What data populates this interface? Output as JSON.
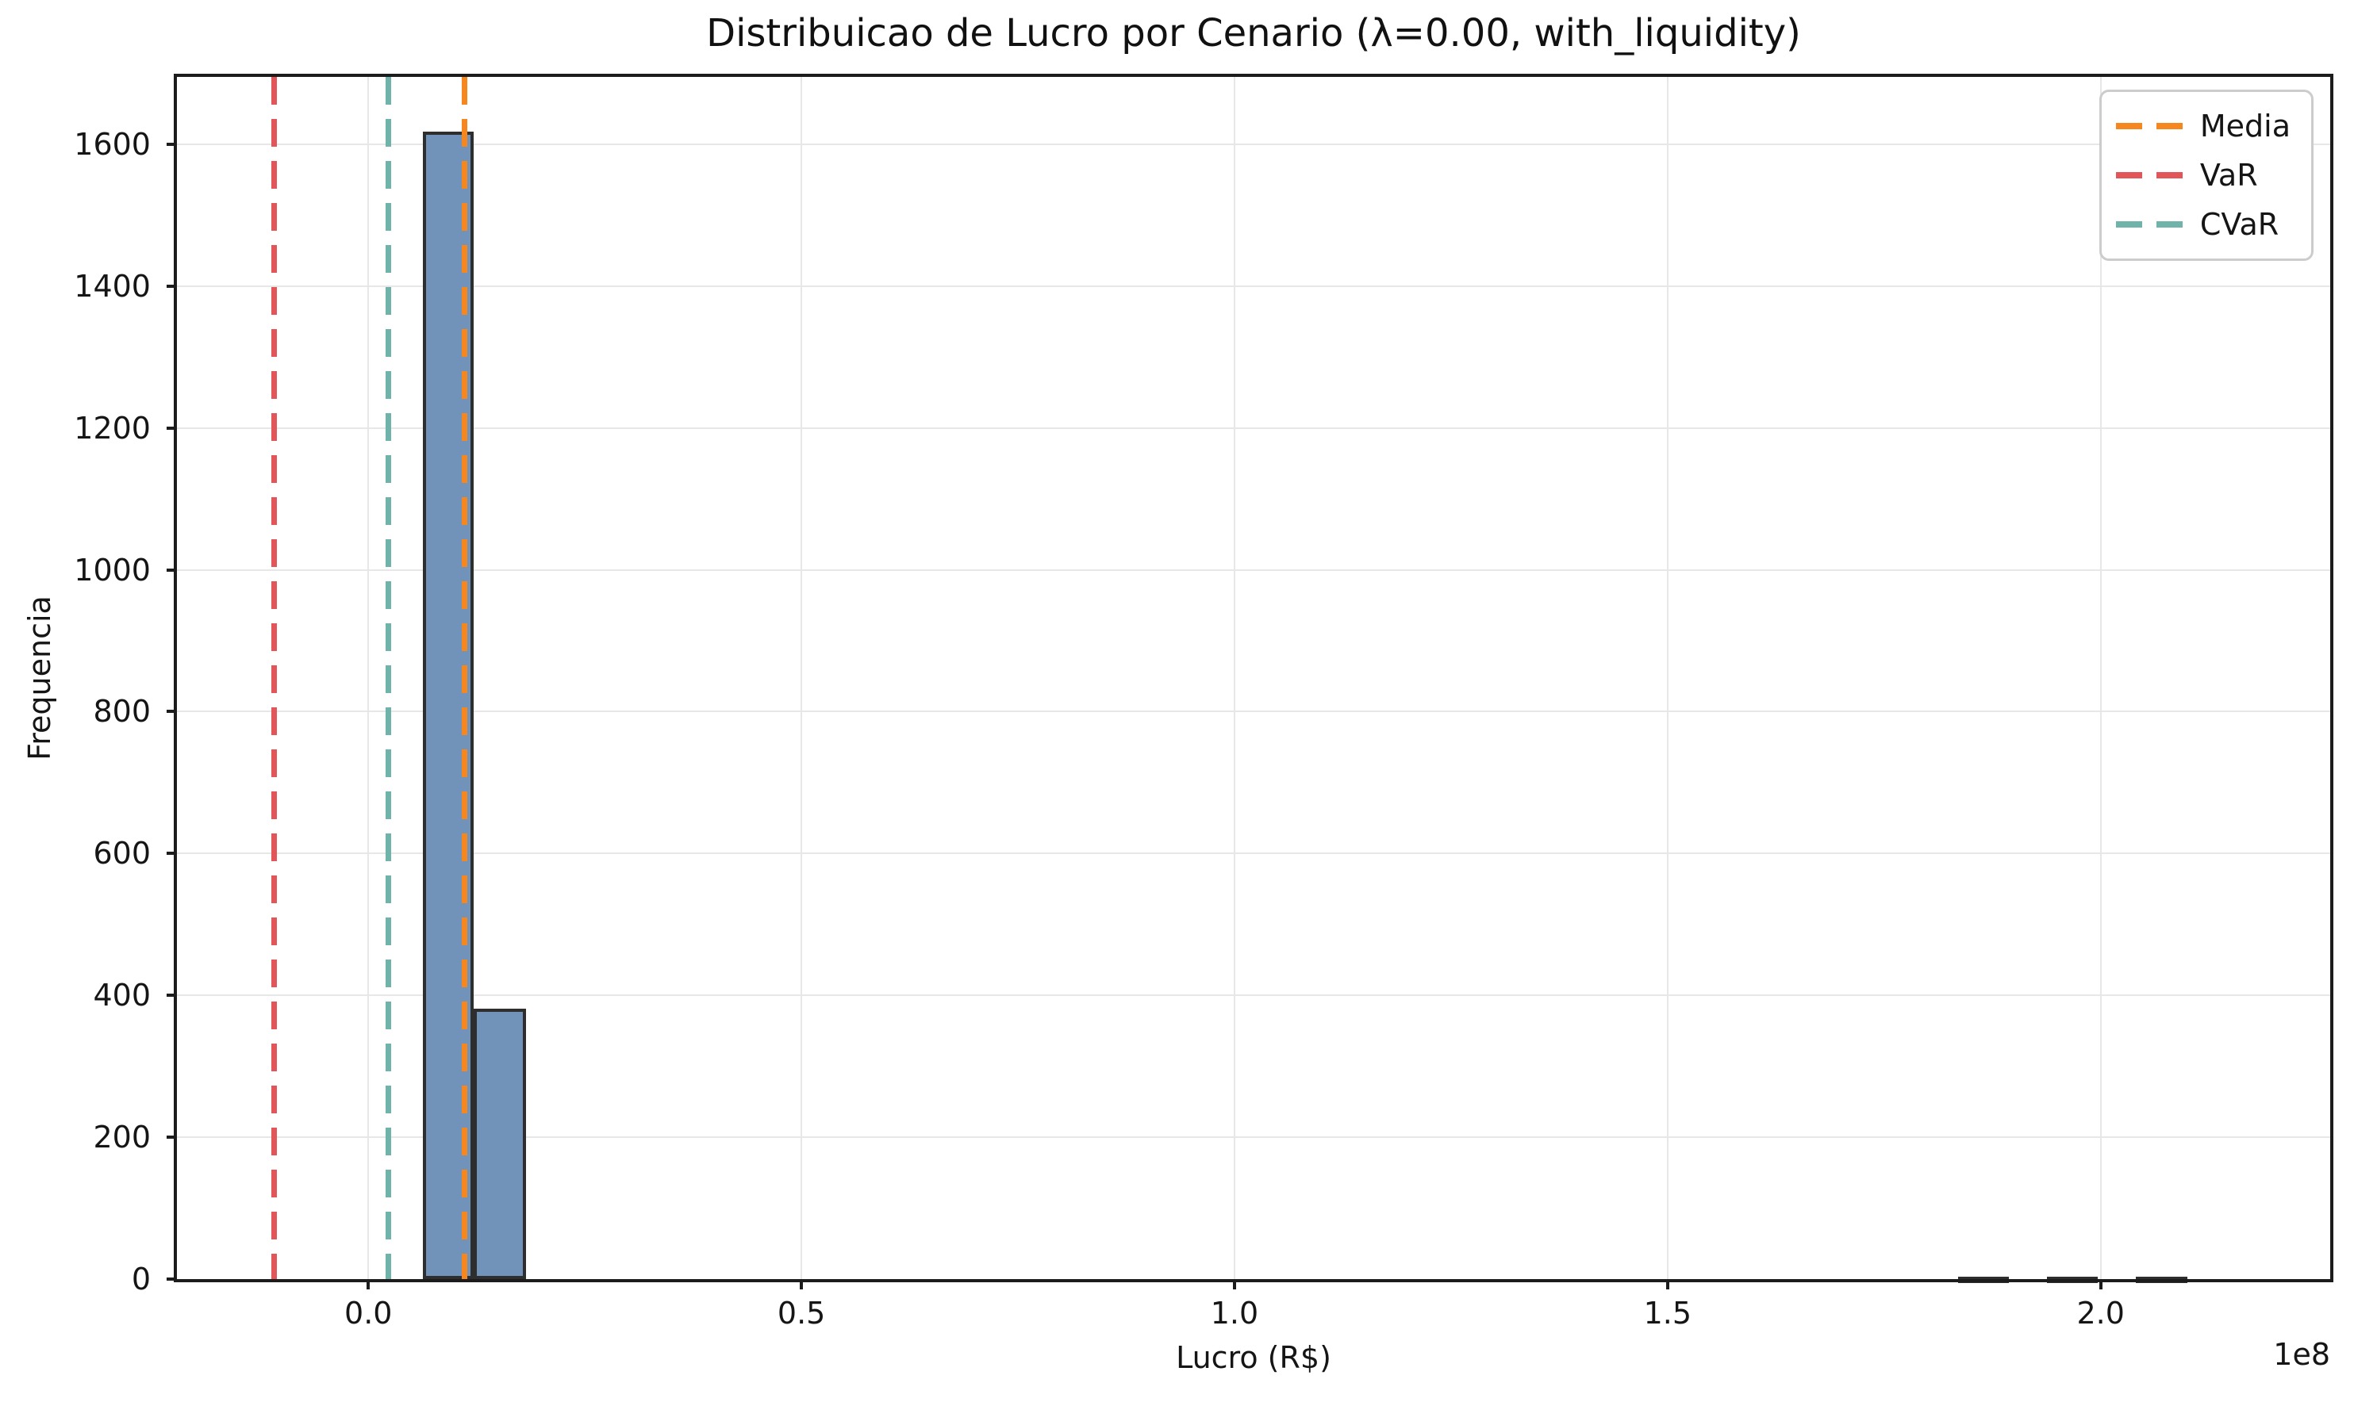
{
  "chart_data": {
    "type": "bar",
    "subtype": "histogram",
    "title": "Distribuicao de Lucro por Cenario (λ=0.00, with_liquidity)",
    "xlabel": "Lucro (R$)",
    "ylabel": "Frequencia",
    "x_offset_text": "1e8",
    "x_units": "1e8 R$",
    "xlim": [
      -0.221,
      2.265
    ],
    "ylim": [
      0,
      1695
    ],
    "grid": true,
    "x_ticks": [
      {
        "value": 0.0,
        "label": "0.0"
      },
      {
        "value": 0.5,
        "label": "0.5"
      },
      {
        "value": 1.0,
        "label": "1.0"
      },
      {
        "value": 1.5,
        "label": "1.5"
      },
      {
        "value": 2.0,
        "label": "2.0"
      }
    ],
    "y_ticks": [
      {
        "value": 0,
        "label": "0"
      },
      {
        "value": 200,
        "label": "200"
      },
      {
        "value": 400,
        "label": "400"
      },
      {
        "value": 600,
        "label": "600"
      },
      {
        "value": 800,
        "label": "800"
      },
      {
        "value": 1000,
        "label": "1000"
      },
      {
        "value": 1200,
        "label": "1200"
      },
      {
        "value": 1400,
        "label": "1400"
      },
      {
        "value": 1600,
        "label": "1600"
      }
    ],
    "bars": [
      {
        "x0": 0.063,
        "x1": 0.122,
        "count": 1618
      },
      {
        "x0": 0.122,
        "x1": 0.182,
        "count": 381
      },
      {
        "x0": 1.835,
        "x1": 1.894,
        "count": 3
      },
      {
        "x0": 1.938,
        "x1": 1.997,
        "count": 3
      },
      {
        "x0": 2.041,
        "x1": 2.1,
        "count": 3
      }
    ],
    "bar_color": "#7193ba",
    "bar_edge_color": "#2e2e2e",
    "vlines": [
      {
        "name": "media",
        "label": "Media",
        "value": 0.111,
        "color": "#f6871f"
      },
      {
        "name": "var",
        "label": "VaR",
        "value": -0.109,
        "color": "#e25559"
      },
      {
        "name": "cvar",
        "label": "CVaR",
        "value": 0.023,
        "color": "#6fb3ab"
      }
    ],
    "legend": {
      "position": "upper right",
      "entries": [
        {
          "label": "Media",
          "color": "#f6871f"
        },
        {
          "label": "VaR",
          "color": "#e25559"
        },
        {
          "label": "CVaR",
          "color": "#6fb3ab"
        }
      ]
    }
  }
}
